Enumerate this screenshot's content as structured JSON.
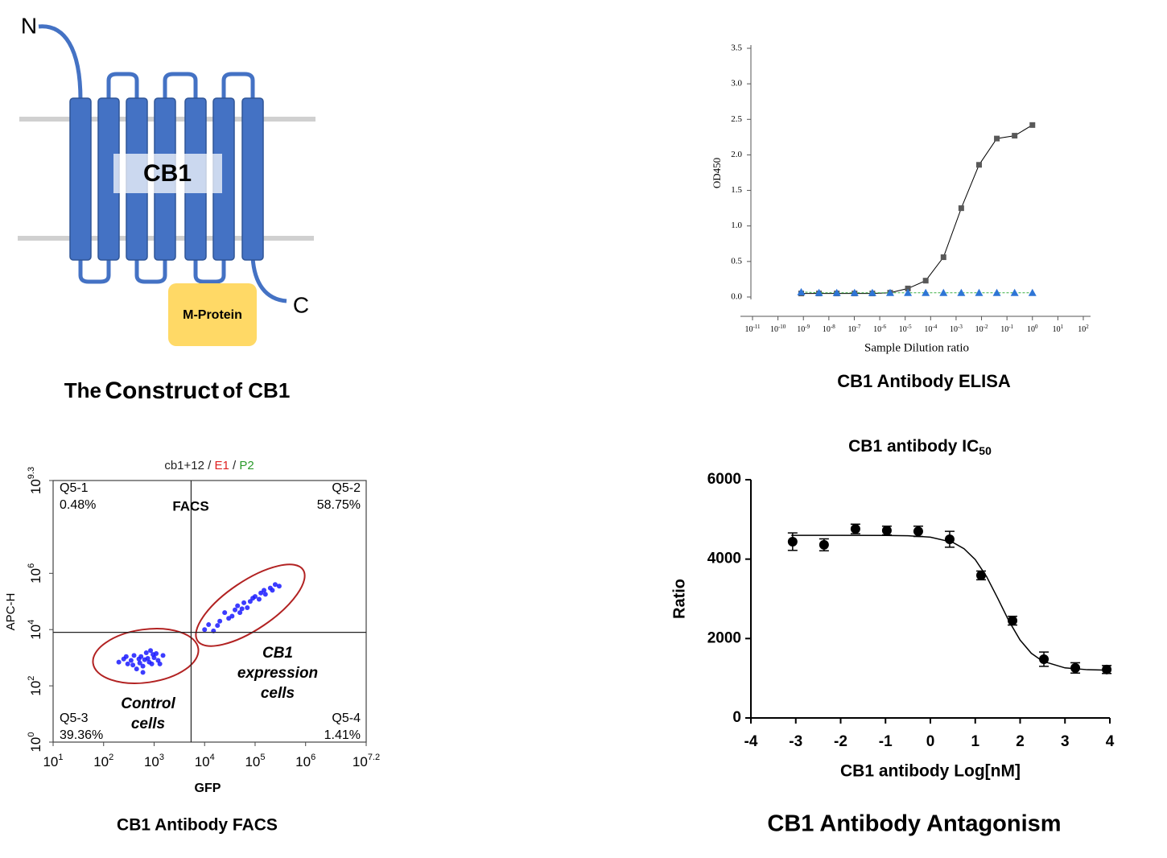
{
  "construct": {
    "n_label": "N",
    "c_label": "C",
    "protein": "CB1",
    "tag": "M-Protein",
    "caption": [
      "The",
      "Construct",
      "of CB1"
    ]
  },
  "chart_data": [
    {
      "type": "line",
      "log_x": true,
      "xlabel": "Sample Dilution ratio",
      "ylabel": "OD450",
      "caption": "CB1 Antibody ELISA",
      "x": [
        8.192e-10,
        4.096e-09,
        2.048e-08,
        1.024e-07,
        5.12e-07,
        2.56e-06,
        1.28e-05,
        6.4e-05,
        0.00032,
        0.0016,
        0.008,
        0.04,
        0.2,
        1
      ],
      "series": [
        {
          "color": "#595959",
          "line_color": "#000000",
          "marker": "square",
          "values": [
            0.05,
            0.05,
            0.05,
            0.05,
            0.05,
            0.06,
            0.12,
            0.23,
            0.56,
            1.25,
            1.86,
            2.23,
            2.27,
            2.42
          ]
        },
        {
          "color": "#2e75d6",
          "line_color": "#3cb043",
          "marker": "triangle",
          "values": [
            0.07,
            0.06,
            0.06,
            0.06,
            0.06,
            0.06,
            0.06,
            0.06,
            0.06,
            0.06,
            0.06,
            0.06,
            0.06,
            0.06
          ]
        }
      ],
      "xlim": [
        1e-11,
        100
      ],
      "xticks": [
        {
          "value": 1e-11,
          "label": "10",
          "exponent": "-11"
        },
        {
          "value": 1e-10,
          "label": "10",
          "exponent": "-10"
        },
        {
          "value": 1e-09,
          "label": "10",
          "exponent": "-9"
        },
        {
          "value": 1e-08,
          "label": "10",
          "exponent": "-8"
        },
        {
          "value": 1e-07,
          "label": "10",
          "exponent": "-7"
        },
        {
          "value": 1e-06,
          "label": "10",
          "exponent": "-6"
        },
        {
          "value": 1e-05,
          "label": "10",
          "exponent": "-5"
        },
        {
          "value": 0.0001,
          "label": "10",
          "exponent": "-4"
        },
        {
          "value": 0.001,
          "label": "10",
          "exponent": "-3"
        },
        {
          "value": 0.01,
          "label": "10",
          "exponent": "-2"
        },
        {
          "value": 0.1,
          "label": "10",
          "exponent": "-1"
        },
        {
          "value": 1,
          "label": "10",
          "exponent": "0"
        },
        {
          "value": 10,
          "label": "10",
          "exponent": "1"
        },
        {
          "value": 100,
          "label": "10",
          "exponent": "2"
        }
      ],
      "ylim": [
        0,
        3.5
      ],
      "yticks": [
        {
          "value": 0,
          "label": "0.0"
        },
        0.5,
        {
          "value": 1,
          "label": "1.0"
        },
        1.5,
        {
          "value": 2,
          "label": "2.0"
        },
        2.5,
        {
          "value": 3,
          "label": "3.0"
        },
        3.5
      ]
    },
    {
      "type": "scatter",
      "log_x": true,
      "log_y": true,
      "title_parts": [
        "cb1+12 / ",
        "E1",
        " / ",
        "P2"
      ],
      "title_colors": [
        "#222222",
        "#e02020",
        "#222222",
        "#2a9a2a"
      ],
      "annotation": "FACS",
      "xlabel": "GFP",
      "ylabel": "APC-H",
      "caption": "CB1 Antibody FACS",
      "color": "#1a1aff",
      "x": [
        300,
        500,
        800,
        400,
        1000,
        600,
        250,
        700,
        1200,
        450,
        900,
        350,
        550,
        1500,
        200,
        650,
        1100,
        380,
        750,
        520,
        850,
        280,
        1300,
        600,
        950,
        10000,
        15000,
        20000,
        30000,
        25000,
        40000,
        50000,
        60000,
        80000,
        100000,
        120000,
        150000,
        200000,
        250000,
        300000,
        18000,
        35000,
        45000,
        70000,
        90000,
        130000,
        160000,
        12000,
        55000,
        220000
      ],
      "values": [
        600,
        900,
        700,
        1200,
        1000,
        500,
        900,
        1500,
        800,
        400,
        600,
        800,
        1100,
        1200,
        700,
        850,
        1400,
        550,
        950,
        650,
        1800,
        1100,
        600,
        300,
        1300,
        10000,
        9000,
        20000,
        25000,
        40000,
        50000,
        40000,
        90000,
        100000,
        150000,
        120000,
        250000,
        300000,
        400000,
        350000,
        14000,
        30000,
        70000,
        60000,
        130000,
        200000,
        180000,
        15000,
        55000,
        250000
      ],
      "xlim": [
        10,
        15848932
      ],
      "ylim": [
        1,
        1995262315
      ],
      "xticks": [
        {
          "value": 10,
          "label": "10",
          "exponent": "1"
        },
        {
          "value": 100,
          "label": "10",
          "exponent": "2"
        },
        {
          "value": 1000,
          "label": "10",
          "exponent": "3"
        },
        {
          "value": 10000,
          "label": "10",
          "exponent": "4"
        },
        {
          "value": 100000,
          "label": "10",
          "exponent": "5"
        },
        {
          "value": 1000000,
          "label": "10",
          "exponent": "6"
        },
        {
          "value": 15848932,
          "label": "10",
          "exponent": "7.2"
        }
      ],
      "yticks": [
        {
          "value": 1,
          "label": "10",
          "exponent": "0"
        },
        {
          "value": 100,
          "label": "10",
          "exponent": "2"
        },
        {
          "value": 10000,
          "label": "10",
          "exponent": "4"
        },
        {
          "value": 1000000,
          "label": "10",
          "exponent": "6"
        },
        {
          "value": 1995262315,
          "label": "10",
          "exponent": "9.3"
        }
      ],
      "gate_x": 5400,
      "gate_y": 8000,
      "quadrants": {
        "names": [
          "Q5-1",
          "Q5-2",
          "Q5-3",
          "Q5-4"
        ],
        "values": [
          0.48,
          58.75,
          39.36,
          1.41
        ],
        "value_labels": [
          "0.48%",
          "58.75%",
          "39.36%",
          "1.41%"
        ]
      },
      "gate_labels": [
        [
          "CB1",
          "expression",
          "cells"
        ],
        [
          "Control",
          "cells"
        ]
      ]
    },
    {
      "type": "scatter",
      "title": "CB1 antibody IC",
      "title_subscript": "50",
      "xlabel": "CB1 antibody Log[nM]",
      "ylabel": "Ratio",
      "caption": "CB1 Antibody Antagonism",
      "color": "#000000",
      "x": [
        -3.07,
        -2.37,
        -1.67,
        -0.97,
        -0.27,
        0.43,
        1.13,
        1.83,
        2.53,
        3.23,
        3.93
      ],
      "values": [
        4440,
        4360,
        4760,
        4720,
        4700,
        4500,
        3590,
        2450,
        1480,
        1260,
        1220
      ],
      "errors": [
        220,
        150,
        120,
        110,
        130,
        200,
        110,
        110,
        180,
        130,
        100
      ],
      "fit": {
        "x": [
          -3.1,
          -2,
          -1,
          -0.5,
          0,
          0.5,
          0.75,
          1,
          1.25,
          1.5,
          1.75,
          2,
          2.25,
          2.5,
          3,
          3.5,
          3.95
        ],
        "values": [
          4600,
          4600,
          4597,
          4588,
          4554,
          4423,
          4263,
          3989,
          3566,
          3017,
          2442,
          1961,
          1629,
          1430,
          1261,
          1215,
          1204
        ]
      },
      "xlim": [
        -4,
        4
      ],
      "xticks": [
        -4,
        -3,
        -2,
        -1,
        0,
        1,
        2,
        3,
        4
      ],
      "ylim": [
        0,
        6000
      ],
      "yticks": [
        0,
        2000,
        4000,
        6000
      ]
    }
  ]
}
